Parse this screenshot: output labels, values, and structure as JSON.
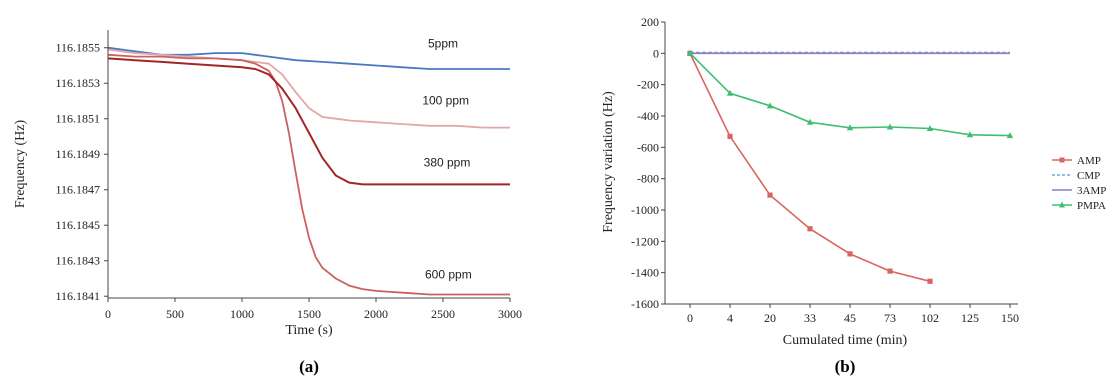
{
  "chart_data": [
    {
      "type": "line",
      "caption": "(a)",
      "xlabel": "Time (s)",
      "ylabel": "Frequency (Hz)",
      "xlim": [
        0,
        3000
      ],
      "ylim": [
        116.1841,
        116.1856
      ],
      "xticks": [
        "0",
        "500",
        "1000",
        "1500",
        "2000",
        "2500",
        "3000"
      ],
      "yticks": [
        "116.1841",
        "116.1843",
        "116.1845",
        "116.1847",
        "116.1849",
        "116.1851",
        "116.1853",
        "116.1855"
      ],
      "grid": false,
      "series": [
        {
          "name": "5ppm",
          "color": "#4a78c2",
          "x": [
            0,
            200,
            400,
            600,
            800,
            1000,
            1200,
            1400,
            1600,
            1800,
            2000,
            2200,
            2400,
            2600,
            2800,
            3000
          ],
          "y": [
            116.1855,
            116.18548,
            116.18546,
            116.18546,
            116.18547,
            116.18547,
            116.18545,
            116.18543,
            116.18542,
            116.18541,
            116.1854,
            116.18539,
            116.18538,
            116.18538,
            116.18538,
            116.18538
          ]
        },
        {
          "name": "100 ppm",
          "color": "#e0a8a8",
          "x": [
            0,
            200,
            400,
            600,
            800,
            1000,
            1200,
            1300,
            1400,
            1500,
            1600,
            1700,
            1800,
            2000,
            2200,
            2400,
            2600,
            2800,
            3000
          ],
          "y": [
            116.18549,
            116.18547,
            116.18546,
            116.18545,
            116.18544,
            116.18543,
            116.18541,
            116.18535,
            116.18525,
            116.18516,
            116.18511,
            116.1851,
            116.18509,
            116.18508,
            116.18507,
            116.18506,
            116.18506,
            116.18505,
            116.18505
          ]
        },
        {
          "name": "380 ppm",
          "color": "#a32626",
          "x": [
            0,
            200,
            400,
            600,
            800,
            1000,
            1100,
            1200,
            1300,
            1400,
            1500,
            1600,
            1700,
            1800,
            1900,
            2000,
            2200,
            2400,
            2600,
            2800,
            3000
          ],
          "y": [
            116.18544,
            116.18543,
            116.18542,
            116.18541,
            116.1854,
            116.18539,
            116.18538,
            116.18535,
            116.18527,
            116.18516,
            116.18502,
            116.18488,
            116.18478,
            116.18474,
            116.18473,
            116.18473,
            116.18473,
            116.18473,
            116.18473,
            116.18473,
            116.18473
          ]
        },
        {
          "name": "600 ppm",
          "color": "#cc6060",
          "x": [
            0,
            200,
            400,
            600,
            800,
            1000,
            1100,
            1200,
            1250,
            1300,
            1350,
            1400,
            1450,
            1500,
            1550,
            1600,
            1700,
            1800,
            1900,
            2000,
            2200,
            2400,
            2600,
            2800,
            3000
          ],
          "y": [
            116.18546,
            116.18545,
            116.18545,
            116.18544,
            116.18544,
            116.18543,
            116.18541,
            116.18537,
            116.18531,
            116.1852,
            116.18502,
            116.1848,
            116.18459,
            116.18443,
            116.18432,
            116.18426,
            116.1842,
            116.18416,
            116.18414,
            116.18413,
            116.18412,
            116.18411,
            116.18411,
            116.18411,
            116.18411
          ]
        }
      ]
    },
    {
      "type": "line",
      "caption": "(b)",
      "xlabel": "Cumulated time (min)",
      "ylabel": "Frequency variation (Hz)",
      "categories": [
        "0",
        "4",
        "20",
        "33",
        "45",
        "73",
        "102",
        "125",
        "150"
      ],
      "ylim": [
        -1600,
        200
      ],
      "yticks": [
        "200",
        "0",
        "-200",
        "-400",
        "-600",
        "-800",
        "-1000",
        "-1200",
        "-1400",
        "-1600"
      ],
      "grid": false,
      "legend": "right",
      "series": [
        {
          "name": "AMP",
          "color": "#d9655f",
          "marker": "square",
          "values": [
            0,
            -530,
            -905,
            -1120,
            -1280,
            -1390,
            -1455,
            null,
            null
          ]
        },
        {
          "name": "CMP",
          "color": "#6fa8dc",
          "dash": true,
          "marker": "none",
          "values": [
            5,
            5,
            5,
            5,
            5,
            5,
            5,
            5,
            5
          ]
        },
        {
          "name": "3AMP",
          "color": "#8e7cc3",
          "marker": "none",
          "values": [
            0,
            0,
            0,
            0,
            0,
            0,
            0,
            0,
            0
          ]
        },
        {
          "name": "PMPA",
          "color": "#3dbf70",
          "marker": "triangle",
          "values": [
            0,
            -255,
            -335,
            -440,
            -475,
            -470,
            -480,
            -520,
            -525
          ]
        }
      ]
    }
  ]
}
